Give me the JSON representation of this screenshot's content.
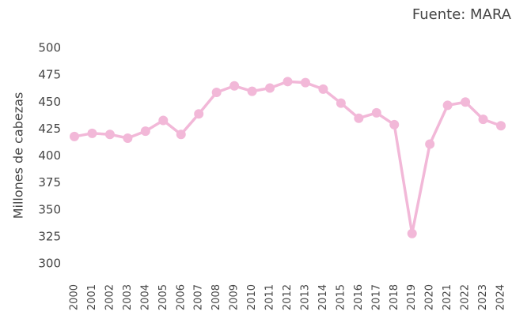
{
  "chart_data": {
    "type": "line",
    "annotation": "Fuente: MARA",
    "y_label": "Millones de cabezas",
    "categories": [
      "2000",
      "2001",
      "2002",
      "2003",
      "2004",
      "2005",
      "2006",
      "2007",
      "2008",
      "2009",
      "2010",
      "2011",
      "2012",
      "2013",
      "2014",
      "2015",
      "2016",
      "2017",
      "2018",
      "2019",
      "2020",
      "2021",
      "2022",
      "2023",
      "2024"
    ],
    "series": [
      {
        "color": "#f2b8d8",
        "values": [
          418,
          421,
          420,
          416.5,
          423,
          433,
          420,
          439,
          459,
          465,
          460,
          463,
          469,
          468,
          462,
          449,
          435,
          440,
          429,
          328,
          411,
          447,
          450,
          434,
          428
        ]
      }
    ],
    "ylim": [
      300,
      500
    ],
    "yticks": [
      300,
      325,
      350,
      375,
      400,
      425,
      450,
      475,
      500
    ],
    "grid": false
  }
}
